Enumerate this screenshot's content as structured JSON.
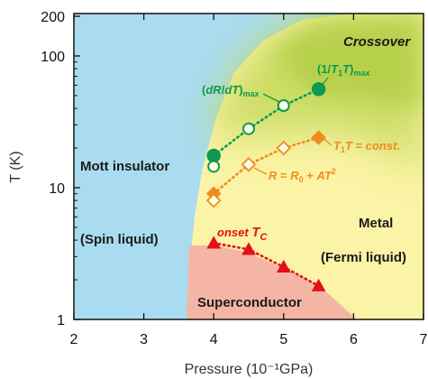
{
  "chart_data": {
    "type": "scatter",
    "xlabel": "Pressure (10⁻¹GPa)",
    "ylabel": "T (K)",
    "xlim": [
      2,
      7
    ],
    "ylim": [
      1,
      200
    ],
    "yscale": "log",
    "x_ticks": [
      "2",
      "3",
      "4",
      "5",
      "6",
      "7"
    ],
    "y_ticks": [
      "1",
      "10",
      "100",
      "200"
    ],
    "grid": false,
    "regions": {
      "crossover": "Crossover",
      "mott": "Mott insulator",
      "spin": "(Spin liquid)",
      "metal": "Metal",
      "fermi": "(Fermi liquid)",
      "super": "Superconductor"
    },
    "colors": {
      "mott_region": "#a9dcf0",
      "metal_region": "#fbf3a6",
      "crossover_region": "#c4d95a",
      "superconductor_region": "#f5b5a5",
      "dRdT": "#0c9a4e",
      "T1": "#0c9a4e",
      "T1T": "#f08c1c",
      "R": "#f08c1c",
      "Tc": "#e3101a"
    },
    "series": [
      {
        "name": "(1/T1T)max",
        "marker": "filled-circle",
        "x": [
          4.0,
          5.5
        ],
        "y": [
          17.5,
          56
        ]
      },
      {
        "name": "(dR/dT)max",
        "marker": "open-circle",
        "x": [
          4.0,
          4.5,
          5.0
        ],
        "y": [
          14.5,
          28,
          42
        ]
      },
      {
        "name": "T1T = const.",
        "marker": "filled-diamond",
        "x": [
          4.0,
          5.5
        ],
        "y": [
          9,
          24
        ]
      },
      {
        "name": "R = R0 + AT2",
        "marker": "open-diamond",
        "x": [
          4.0,
          4.5,
          5.0
        ],
        "y": [
          8,
          15,
          20
        ]
      },
      {
        "name": "onset Tc",
        "marker": "filled-triangle",
        "x": [
          4.0,
          4.5,
          5.0,
          5.5
        ],
        "y": [
          3.8,
          3.4,
          2.5,
          1.8
        ]
      }
    ]
  }
}
